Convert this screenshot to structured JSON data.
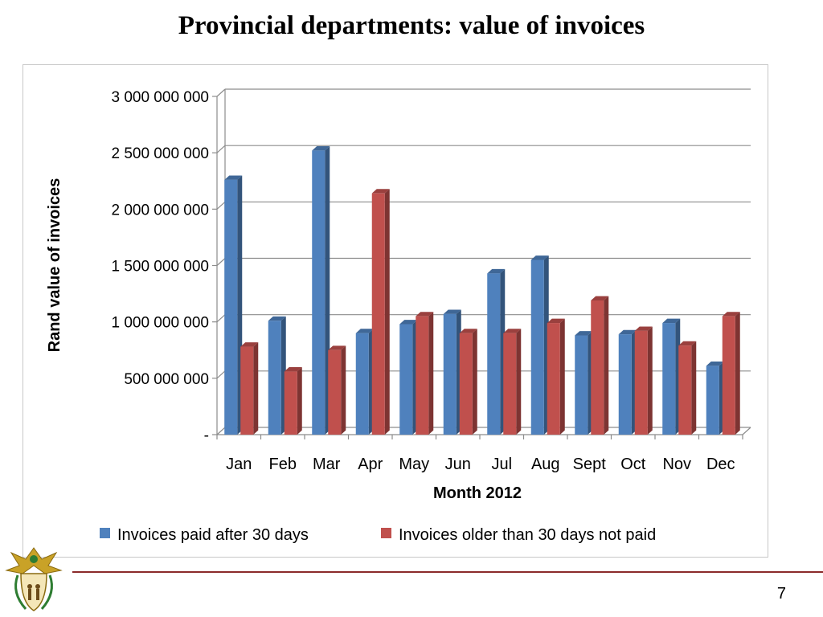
{
  "slide": {
    "title": "Provincial departments: value of invoices",
    "page_number": "7"
  },
  "colors": {
    "series_blue": "#4F81BD",
    "series_red": "#C0504D"
  },
  "chart_data": {
    "type": "bar",
    "title": "",
    "xlabel": "Month 2012",
    "ylabel": "Rand value of invoices",
    "ylim": [
      0,
      3000000000
    ],
    "yticks": [
      0,
      500000000,
      1000000000,
      1500000000,
      2000000000,
      2500000000,
      3000000000
    ],
    "ytick_labels": [
      "-",
      "500 000 000",
      "1 000 000 000",
      "1 500 000 000",
      "2 000 000 000",
      "2 500 000 000",
      "3 000 000 000"
    ],
    "categories": [
      "Jan",
      "Feb",
      "Mar",
      "Apr",
      "May",
      "Jun",
      "Jul",
      "Aug",
      "Sept",
      "Oct",
      "Nov",
      "Dec"
    ],
    "series": [
      {
        "name": "Invoices paid after 30 days",
        "color": "#4F81BD",
        "values": [
          2260000000,
          1010000000,
          2520000000,
          900000000,
          980000000,
          1070000000,
          1430000000,
          1550000000,
          880000000,
          890000000,
          990000000,
          610000000
        ]
      },
      {
        "name": "Invoices older than 30 days not paid",
        "color": "#C0504D",
        "values": [
          780000000,
          560000000,
          750000000,
          2140000000,
          1050000000,
          900000000,
          900000000,
          990000000,
          1190000000,
          920000000,
          790000000,
          1050000000
        ]
      }
    ],
    "grid": true,
    "legend": "bottom"
  }
}
